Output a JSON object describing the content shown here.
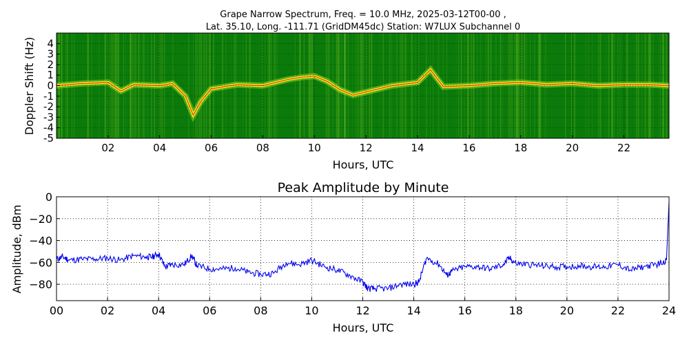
{
  "chart_data": [
    {
      "type": "heatmap",
      "title_line1": "Grape Narrow Spectrum, Freq. = 10.0 MHz, 2025-03-12T00-00 ,",
      "title_line2": "Lat.  35.10, Long. -111.71 (GridDM45dc) Station: W7LUX Subchannel 0",
      "xlabel": "Hours, UTC",
      "ylabel": "Doppler Shift (Hz)",
      "xlim": [
        0,
        23.75
      ],
      "ylim": [
        -5,
        5
      ],
      "x_ticks": [
        2,
        4,
        6,
        8,
        10,
        12,
        14,
        16,
        18,
        20,
        22
      ],
      "x_tick_labels": [
        "02",
        "04",
        "06",
        "08",
        "10",
        "12",
        "14",
        "16",
        "18",
        "20",
        "22"
      ],
      "y_ticks": [
        4,
        3,
        2,
        1,
        0,
        -1,
        -2,
        -3,
        -4,
        -5
      ],
      "y_tick_labels": [
        "4",
        "3",
        "2",
        "1",
        "0",
        "-1",
        "-2",
        "-3",
        "-4",
        "-5"
      ],
      "grid": true,
      "colors": {
        "background": "#0a7a0a",
        "mid": "#8fd12a",
        "high": "#f2ef1a",
        "peak": "#e8231a"
      },
      "trace_hz": {
        "x": [
          0,
          1,
          2,
          2.5,
          3,
          4,
          4.5,
          5,
          5.3,
          5.6,
          6,
          7,
          8,
          8.5,
          9,
          9.5,
          10,
          10.5,
          11,
          11.5,
          12,
          13,
          14,
          14.5,
          15,
          16,
          17,
          18,
          19,
          20,
          21,
          22,
          23,
          23.75
        ],
        "y": [
          0,
          0.2,
          0.3,
          -0.5,
          0.1,
          0,
          0.2,
          -1,
          -2.8,
          -1.5,
          -0.3,
          0.1,
          0,
          0.3,
          0.6,
          0.8,
          0.9,
          0.4,
          -0.4,
          -0.9,
          -0.6,
          0,
          0.3,
          1.5,
          -0.1,
          0,
          0.2,
          0.3,
          0.1,
          0.2,
          0,
          0.1,
          0.1,
          0
        ]
      }
    },
    {
      "type": "line",
      "title": "Peak Amplitude by Minute",
      "xlabel": "Hours, UTC",
      "ylabel": "Amplitude, dBm",
      "xlim": [
        0,
        24
      ],
      "ylim": [
        -95,
        0
      ],
      "x_ticks": [
        0,
        2,
        4,
        6,
        8,
        10,
        12,
        14,
        16,
        18,
        20,
        22,
        24
      ],
      "x_tick_labels": [
        "00",
        "02",
        "04",
        "06",
        "08",
        "10",
        "12",
        "14",
        "16",
        "18",
        "20",
        "22",
        "24"
      ],
      "y_ticks": [
        0,
        -20,
        -40,
        -60,
        -80
      ],
      "y_tick_labels": [
        "0",
        "−20",
        "−40",
        "−60",
        "−80"
      ],
      "grid": true,
      "line_color": "#0000ee",
      "series": [
        {
          "x": [
            0,
            0.25,
            0.5,
            1,
            1.5,
            2,
            2.5,
            3,
            3.5,
            3.75,
            4,
            4.25,
            4.5,
            5,
            5.3,
            5.5,
            6,
            6.5,
            7,
            7.5,
            8,
            8.5,
            9,
            9.5,
            10,
            10.5,
            11,
            11.5,
            12,
            12.2,
            12.5,
            13,
            13.5,
            14,
            14.2,
            14.5,
            15,
            15.3,
            15.5,
            16,
            16.5,
            17,
            17.5,
            17.75,
            18,
            18.5,
            19,
            19.5,
            20,
            20.5,
            21,
            21.5,
            22,
            22.5,
            23,
            23.5,
            23.9,
            24
          ],
          "y": [
            -57,
            -55,
            -58,
            -57,
            -57,
            -56,
            -58,
            -54,
            -55,
            -55,
            -52,
            -64,
            -62,
            -62,
            -54,
            -63,
            -66,
            -66,
            -65,
            -69,
            -71,
            -70,
            -60,
            -62,
            -58,
            -64,
            -67,
            -72,
            -78,
            -84,
            -84,
            -84,
            -80,
            -80,
            -78,
            -56,
            -62,
            -72,
            -68,
            -64,
            -64,
            -66,
            -62,
            -56,
            -61,
            -62,
            -63,
            -64,
            -64,
            -63,
            -64,
            -64,
            -62,
            -67,
            -64,
            -62,
            -58,
            -5
          ]
        }
      ]
    }
  ]
}
